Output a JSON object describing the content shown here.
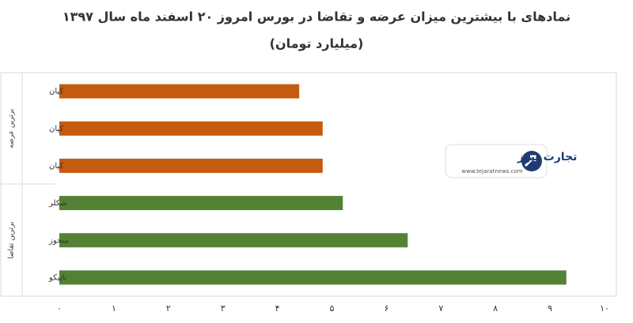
{
  "chart_data": {
    "type": "bar",
    "title": "نمادهای با بیشترین میزان عرضه و تقاضا در بورس امروز ۲۰ اسفند ماه سال ۱۳۹۷",
    "subtitle": "(میلیارد تومان)",
    "orientation": "horizontal",
    "groups": [
      {
        "label": "برترین عرضه",
        "color": "#c55a11",
        "categories": [
          "کیان",
          "کیان",
          "کیان"
        ],
        "values": [
          4.4,
          4.83,
          4.83
        ]
      },
      {
        "label": "برترین تقاضا",
        "color": "#548235",
        "categories": [
          "شکلر",
          "سخوز",
          "تاپیکو"
        ],
        "values": [
          5.2,
          6.39,
          9.3
        ]
      }
    ],
    "xlim": [
      0,
      10
    ],
    "xticks": [
      {
        "value": 0,
        "label": "۰"
      },
      {
        "value": 1,
        "label": "۱"
      },
      {
        "value": 2,
        "label": "۲"
      },
      {
        "value": 3,
        "label": "۳"
      },
      {
        "value": 4,
        "label": "۴"
      },
      {
        "value": 5,
        "label": "۵"
      },
      {
        "value": 6,
        "label": "۶"
      },
      {
        "value": 7,
        "label": "۷"
      },
      {
        "value": 8,
        "label": "۸"
      },
      {
        "value": 9,
        "label": "۹"
      },
      {
        "value": 10,
        "label": "۱۰"
      }
    ],
    "grid": false,
    "watermark": {
      "name": "تجارت نیوز",
      "url": "www.tejaratnews.com"
    }
  }
}
